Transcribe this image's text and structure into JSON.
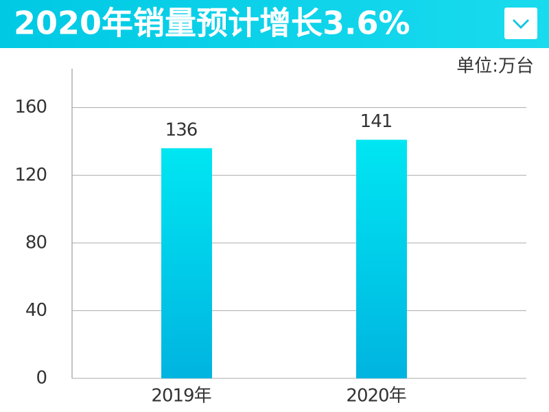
{
  "chart_data": {
    "type": "bar",
    "title": "2020年销量预计增长3.6%",
    "unit": "单位:万台",
    "categories": [
      "2019年",
      "2020年"
    ],
    "values": [
      136,
      141
    ],
    "color": "#00e6f2",
    "ylim": [
      0,
      183
    ],
    "yticks": [
      0,
      40,
      80,
      120,
      160
    ],
    "grid": true
  }
}
